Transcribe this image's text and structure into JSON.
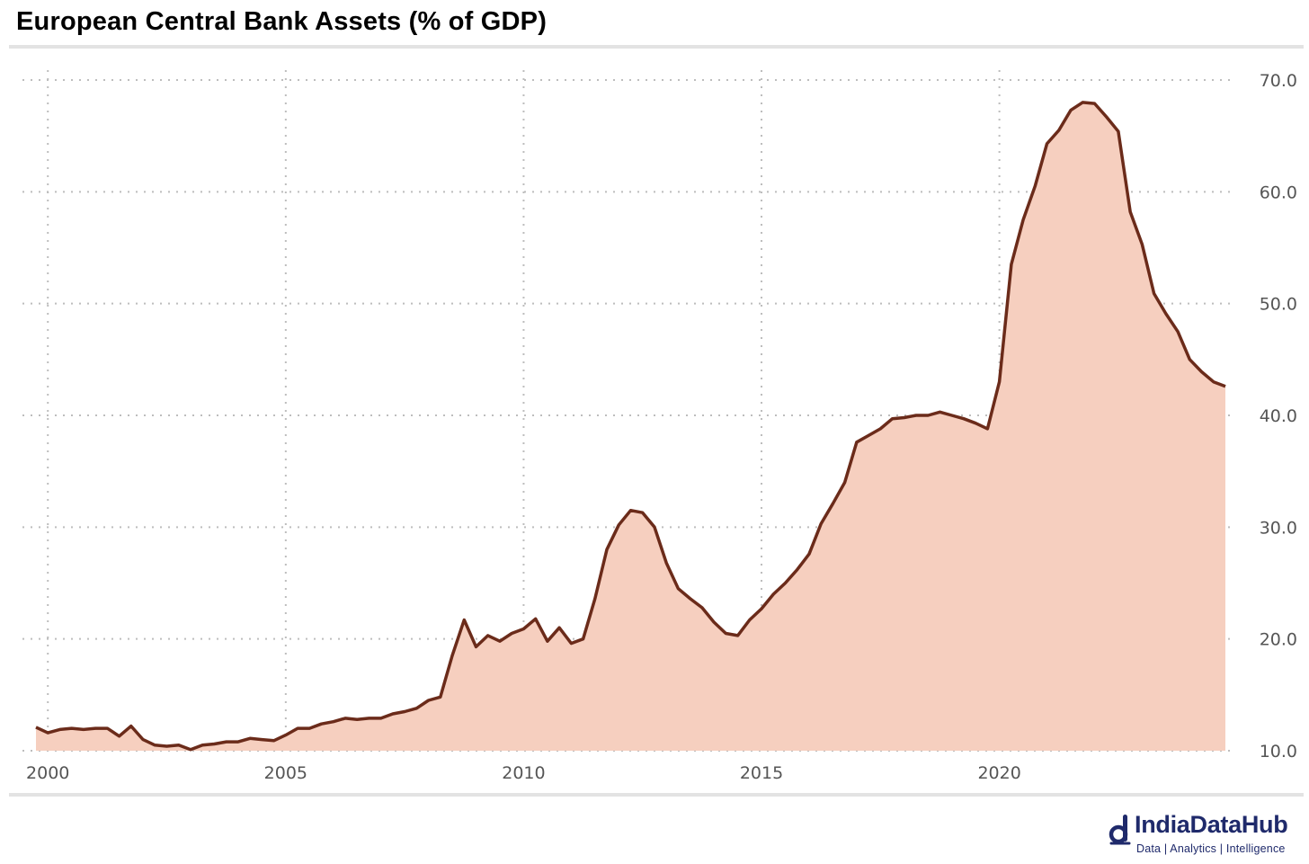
{
  "title": "European Central Bank Assets (% of GDP)",
  "colors": {
    "line": "#6b2b1a",
    "fill": "#f6cfbf",
    "grid": "#bdbdbd",
    "logo": "#1f2a6b"
  },
  "logo": {
    "name": "IndiaDataHub",
    "tagline": "Data | Analytics | Intelligence",
    "icon": "data-hub-logo-icon"
  },
  "chart_data": {
    "type": "area",
    "title": "European Central Bank Assets (% of GDP)",
    "xlabel": "",
    "ylabel": "",
    "grid": true,
    "y_axis_position": "right",
    "xlim": [
      1999.75,
      2024.75
    ],
    "ylim": [
      10,
      70
    ],
    "x_ticks": [
      2000,
      2005,
      2010,
      2015,
      2020
    ],
    "x_tick_labels": [
      "2000",
      "2005",
      "2010",
      "2015",
      "2020"
    ],
    "y_ticks": [
      10,
      20,
      30,
      40,
      50,
      60,
      70
    ],
    "y_tick_labels": [
      "10.0",
      "20.0",
      "30.0",
      "40.0",
      "50.0",
      "60.0",
      "70.0"
    ],
    "series": [
      {
        "x": [
          1999.75,
          2000.0,
          2000.25,
          2000.5,
          2000.75,
          2001.0,
          2001.25,
          2001.5,
          2001.75,
          2002.0,
          2002.25,
          2002.5,
          2002.75,
          2003.0,
          2003.25,
          2003.5,
          2003.75,
          2004.0,
          2004.25,
          2004.5,
          2004.75,
          2005.0,
          2005.25,
          2005.5,
          2005.75,
          2006.0,
          2006.25,
          2006.5,
          2006.75,
          2007.0,
          2007.25,
          2007.5,
          2007.75,
          2008.0,
          2008.25,
          2008.5,
          2008.75,
          2009.0,
          2009.25,
          2009.5,
          2009.75,
          2010.0,
          2010.25,
          2010.5,
          2010.75,
          2011.0,
          2011.25,
          2011.5,
          2011.75,
          2012.0,
          2012.25,
          2012.5,
          2012.75,
          2013.0,
          2013.25,
          2013.5,
          2013.75,
          2014.0,
          2014.25,
          2014.5,
          2014.75,
          2015.0,
          2015.25,
          2015.5,
          2015.75,
          2016.0,
          2016.25,
          2016.5,
          2016.75,
          2017.0,
          2017.25,
          2017.5,
          2017.75,
          2018.0,
          2018.25,
          2018.5,
          2018.75,
          2019.0,
          2019.25,
          2019.5,
          2019.75,
          2020.0,
          2020.25,
          2020.5,
          2020.75,
          2021.0,
          2021.25,
          2021.5,
          2021.75,
          2022.0,
          2022.25,
          2022.5,
          2022.75,
          2023.0,
          2023.25,
          2023.5,
          2023.75,
          2024.0,
          2024.25,
          2024.5,
          2024.75
        ],
        "values": [
          12.1,
          11.6,
          11.9,
          12.0,
          11.9,
          12.0,
          12.0,
          11.3,
          12.2,
          11.0,
          10.5,
          10.4,
          10.5,
          10.1,
          10.5,
          10.6,
          10.8,
          10.8,
          11.1,
          11.0,
          10.9,
          11.4,
          12.0,
          12.0,
          12.4,
          12.6,
          12.9,
          12.8,
          12.9,
          12.9,
          13.3,
          13.5,
          13.8,
          14.5,
          14.8,
          18.5,
          21.7,
          19.3,
          20.3,
          19.8,
          20.5,
          20.9,
          21.8,
          19.8,
          21.0,
          19.6,
          20.0,
          23.6,
          28.0,
          30.2,
          31.5,
          31.3,
          30.0,
          26.8,
          24.5,
          23.6,
          22.8,
          21.5,
          20.5,
          20.3,
          21.7,
          22.7,
          24.0,
          25.0,
          26.2,
          27.6,
          30.3,
          32.1,
          34.0,
          37.6,
          38.2,
          38.8,
          39.7,
          39.8,
          40.0,
          40.0,
          40.3,
          40.0,
          39.7,
          39.3,
          38.8,
          43.0,
          53.5,
          57.5,
          60.5,
          64.3,
          65.5,
          67.3,
          68.0,
          67.9,
          66.7,
          65.4,
          58.2,
          55.3,
          50.9,
          49.1,
          47.5,
          45.0,
          43.9,
          43.0,
          42.6
        ]
      }
    ]
  }
}
